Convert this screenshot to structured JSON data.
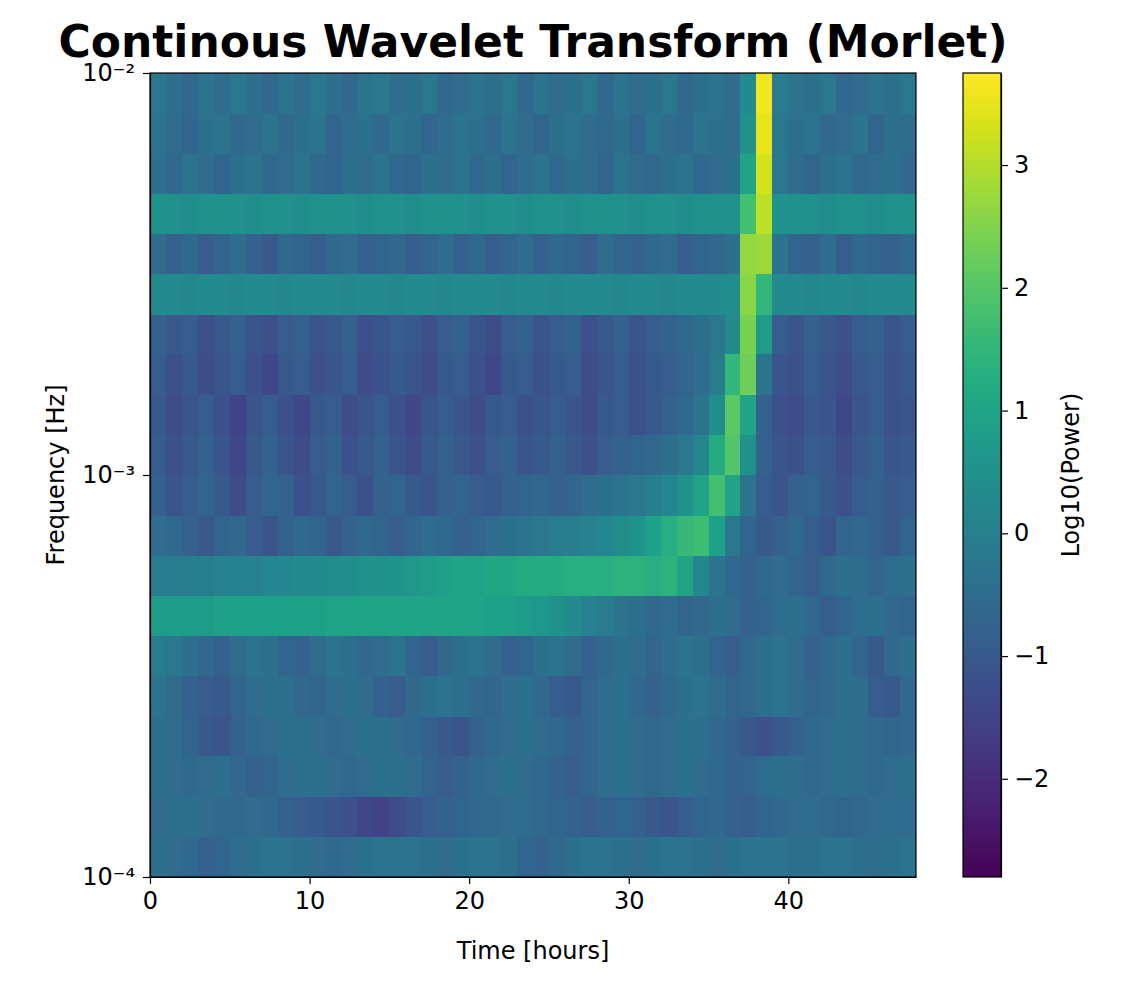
{
  "chart_data": {
    "type": "heatmap",
    "title": "Continous Wavelet Transform (Morlet)",
    "x_label": "Time [hours]",
    "y_label": "Frequency [Hz]",
    "log": "y",
    "color": "viridis",
    "xlim": [
      0,
      48
    ],
    "xticks": [
      0,
      10,
      20,
      30,
      40
    ],
    "ylim": [
      0.0001,
      0.01
    ],
    "yticks": [
      {
        "value": 0.0001,
        "label": "10⁻⁴"
      },
      {
        "value": 0.001,
        "label": "10⁻³"
      },
      {
        "value": 0.01,
        "label": "10⁻²"
      }
    ],
    "x_bins": [
      0,
      1,
      2,
      3,
      4,
      5,
      6,
      7,
      8,
      9,
      10,
      11,
      12,
      13,
      14,
      15,
      16,
      17,
      18,
      19,
      20,
      21,
      22,
      23,
      24,
      25,
      26,
      27,
      28,
      29,
      30,
      31,
      32,
      33,
      34,
      35,
      36,
      37,
      38,
      39,
      40,
      41,
      42,
      43,
      44,
      45,
      46,
      47,
      48
    ],
    "y_bins": [
      0.0001,
      0.000126,
      0.000158,
      0.0002,
      0.000251,
      0.000316,
      0.000398,
      0.000501,
      0.000631,
      0.000794,
      0.001,
      0.00126,
      0.00158,
      0.002,
      0.00251,
      0.00316,
      0.00398,
      0.00501,
      0.00631,
      0.00794,
      0.01
    ],
    "values": [
      [
        -0.4,
        -0.5,
        -0.6,
        -0.8,
        -0.7,
        -0.5,
        -0.4,
        -0.3,
        -0.3,
        -0.4,
        -0.5,
        -0.6,
        -0.5,
        -0.4,
        -0.3,
        -0.3,
        -0.3,
        -0.4,
        -0.5,
        -0.4,
        -0.3,
        -0.3,
        -0.4,
        -0.7,
        -0.8,
        -0.6,
        -0.4,
        -0.3,
        -0.3,
        -0.4,
        -0.5,
        -0.4,
        -0.3,
        -0.3,
        -0.4,
        -0.5,
        -0.4,
        -0.3,
        -0.3,
        -0.3,
        -0.4,
        -0.4,
        -0.3,
        -0.3,
        -0.4,
        -0.5,
        -0.4,
        -0.3
      ],
      [
        -0.5,
        -0.4,
        -0.4,
        -0.5,
        -0.6,
        -0.6,
        -0.5,
        -0.6,
        -0.8,
        -0.9,
        -1.0,
        -1.1,
        -1.2,
        -1.4,
        -1.5,
        -1.3,
        -1.1,
        -0.9,
        -0.8,
        -0.7,
        -0.6,
        -0.6,
        -0.5,
        -0.5,
        -0.6,
        -0.7,
        -0.8,
        -0.9,
        -0.8,
        -0.7,
        -0.8,
        -1.0,
        -1.1,
        -0.9,
        -0.7,
        -0.6,
        -0.8,
        -0.9,
        -0.7,
        -0.6,
        -0.5,
        -0.5,
        -0.6,
        -0.7,
        -0.6,
        -0.5,
        -0.5,
        -0.5
      ],
      [
        -0.4,
        -0.5,
        -0.6,
        -0.5,
        -0.4,
        -0.6,
        -0.8,
        -0.7,
        -0.5,
        -0.4,
        -0.4,
        -0.5,
        -0.6,
        -0.5,
        -0.4,
        -0.4,
        -0.5,
        -0.7,
        -0.9,
        -0.8,
        -0.6,
        -0.5,
        -0.4,
        -0.5,
        -0.6,
        -0.8,
        -0.9,
        -0.7,
        -0.5,
        -0.4,
        -0.5,
        -0.6,
        -0.5,
        -0.4,
        -0.5,
        -0.6,
        -0.8,
        -0.7,
        -0.5,
        -0.4,
        -0.5,
        -0.6,
        -0.5,
        -0.4,
        -0.5,
        -0.6,
        -0.5,
        -0.4
      ],
      [
        -0.4,
        -0.5,
        -0.7,
        -1.0,
        -1.1,
        -0.8,
        -0.6,
        -0.5,
        -0.4,
        -0.4,
        -0.5,
        -0.6,
        -0.5,
        -0.4,
        -0.4,
        -0.5,
        -0.6,
        -0.8,
        -1.0,
        -1.1,
        -0.8,
        -0.6,
        -0.5,
        -0.4,
        -0.5,
        -0.6,
        -0.8,
        -0.7,
        -0.5,
        -0.4,
        -0.5,
        -0.6,
        -0.5,
        -0.4,
        -0.4,
        -0.6,
        -0.8,
        -1.0,
        -1.2,
        -1.0,
        -0.8,
        -0.6,
        -0.5,
        -0.4,
        -0.5,
        -0.6,
        -0.7,
        -0.6
      ],
      [
        -0.3,
        -0.5,
        -0.8,
        -0.9,
        -1.0,
        -0.7,
        -0.5,
        -0.4,
        -0.4,
        -0.6,
        -0.7,
        -0.5,
        -0.4,
        -0.5,
        -0.8,
        -0.9,
        -0.6,
        -0.4,
        -0.3,
        -0.4,
        -0.6,
        -0.7,
        -0.5,
        -0.4,
        -0.6,
        -0.9,
        -1.0,
        -0.7,
        -0.5,
        -0.4,
        -0.6,
        -0.8,
        -0.6,
        -0.4,
        -0.3,
        -0.5,
        -0.7,
        -0.6,
        -0.4,
        -0.3,
        -0.5,
        -0.7,
        -0.6,
        -0.4,
        -0.5,
        -0.9,
        -1.0,
        -0.6
      ],
      [
        -0.1,
        -0.2,
        -0.4,
        -0.6,
        -0.8,
        -0.5,
        -0.3,
        -0.4,
        -0.7,
        -0.8,
        -0.5,
        -0.3,
        -0.4,
        -0.6,
        -0.5,
        -0.3,
        -0.7,
        -0.9,
        -0.6,
        -0.4,
        -0.3,
        -0.5,
        -0.8,
        -0.7,
        -0.4,
        -0.3,
        -0.5,
        -0.8,
        -0.6,
        -0.4,
        -0.5,
        -0.7,
        -0.5,
        -0.3,
        -0.4,
        -0.7,
        -0.9,
        -0.6,
        -0.4,
        -0.3,
        -0.5,
        -0.8,
        -0.6,
        -0.4,
        -0.7,
        -1.0,
        -0.6,
        -0.4
      ],
      [
        0.8,
        0.8,
        0.8,
        0.8,
        0.9,
        0.9,
        0.9,
        0.9,
        0.9,
        0.9,
        0.9,
        1.0,
        1.0,
        1.0,
        1.0,
        1.0,
        1.0,
        1.0,
        1.0,
        1.0,
        1.0,
        0.9,
        0.9,
        0.8,
        0.7,
        0.5,
        0.3,
        0.1,
        -0.1,
        -0.3,
        -0.4,
        -0.6,
        -0.5,
        -0.7,
        -0.6,
        -0.4,
        -0.5,
        -0.8,
        -0.7,
        -0.5,
        -0.4,
        -0.6,
        -0.9,
        -0.7,
        -0.5,
        -0.4,
        -0.6,
        -0.7
      ],
      [
        -0.1,
        -0.1,
        0.0,
        0.0,
        0.1,
        0.1,
        0.1,
        0.2,
        0.2,
        0.3,
        0.3,
        0.4,
        0.4,
        0.5,
        0.5,
        0.6,
        0.7,
        0.8,
        0.9,
        1.0,
        1.0,
        1.1,
        1.1,
        1.2,
        1.2,
        1.2,
        1.3,
        1.3,
        1.3,
        1.4,
        1.4,
        1.3,
        1.4,
        1.0,
        0.2,
        -0.3,
        -0.6,
        -0.8,
        -0.6,
        -0.5,
        -0.7,
        -0.9,
        -0.6,
        -0.4,
        -0.5,
        -0.7,
        -0.5,
        -0.4
      ],
      [
        -0.5,
        -0.6,
        -0.8,
        -1.0,
        -0.7,
        -0.6,
        -0.9,
        -1.1,
        -0.8,
        -0.6,
        -0.7,
        -1.0,
        -0.8,
        -0.6,
        -0.7,
        -0.9,
        -0.7,
        -0.5,
        -0.6,
        -0.8,
        -0.7,
        -0.5,
        -0.4,
        -0.3,
        -0.2,
        -0.1,
        0.0,
        0.1,
        0.2,
        0.4,
        0.6,
        0.9,
        1.3,
        1.6,
        1.7,
        0.9,
        -0.2,
        -0.7,
        -1.0,
        -0.8,
        -0.6,
        -0.9,
        -1.1,
        -0.7,
        -0.6,
        -0.8,
        -1.0,
        -0.7
      ],
      [
        -0.8,
        -1.1,
        -0.9,
        -0.7,
        -1.0,
        -1.3,
        -0.9,
        -0.7,
        -0.8,
        -1.2,
        -1.0,
        -0.7,
        -0.9,
        -1.2,
        -0.8,
        -0.7,
        -1.0,
        -1.1,
        -0.8,
        -0.7,
        -0.9,
        -1.0,
        -0.8,
        -0.7,
        -0.6,
        -0.8,
        -0.7,
        -0.5,
        -0.4,
        -0.3,
        -0.2,
        0.0,
        0.2,
        0.5,
        1.0,
        1.8,
        1.0,
        -0.3,
        -0.9,
        -1.1,
        -0.8,
        -0.7,
        -1.0,
        -1.2,
        -0.9,
        -0.8,
        -1.0,
        -0.9
      ],
      [
        -0.9,
        -1.2,
        -1.0,
        -0.8,
        -1.1,
        -1.4,
        -1.0,
        -0.8,
        -1.1,
        -1.3,
        -0.9,
        -0.8,
        -1.2,
        -1.0,
        -0.8,
        -1.1,
        -1.3,
        -1.0,
        -0.8,
        -1.0,
        -1.2,
        -0.9,
        -0.8,
        -1.1,
        -1.0,
        -0.8,
        -1.0,
        -1.2,
        -0.9,
        -0.8,
        -0.7,
        -0.6,
        -0.4,
        -0.2,
        0.2,
        1.2,
        2.0,
        0.5,
        -0.8,
        -1.1,
        -1.2,
        -0.9,
        -1.0,
        -1.3,
        -1.0,
        -0.8,
        -1.1,
        -1.0
      ],
      [
        -1.0,
        -1.3,
        -1.1,
        -0.9,
        -1.2,
        -1.5,
        -1.1,
        -0.9,
        -1.2,
        -1.4,
        -1.0,
        -0.9,
        -1.3,
        -1.1,
        -0.9,
        -1.2,
        -1.4,
        -1.1,
        -0.9,
        -1.1,
        -1.3,
        -1.0,
        -0.9,
        -1.2,
        -1.1,
        -0.9,
        -1.1,
        -1.3,
        -1.0,
        -0.9,
        -1.2,
        -1.0,
        -0.8,
        -0.6,
        -0.3,
        0.4,
        2.1,
        1.0,
        -0.8,
        -1.2,
        -1.3,
        -1.0,
        -1.1,
        -1.4,
        -1.1,
        -0.9,
        -1.2,
        -1.1
      ],
      [
        -0.9,
        -1.2,
        -1.0,
        -1.3,
        -1.1,
        -0.9,
        -1.2,
        -1.4,
        -1.0,
        -0.9,
        -1.2,
        -1.1,
        -0.9,
        -1.3,
        -1.2,
        -1.0,
        -1.1,
        -1.3,
        -1.0,
        -0.9,
        -1.2,
        -1.4,
        -1.0,
        -0.9,
        -1.2,
        -1.0,
        -0.9,
        -1.3,
        -1.1,
        -0.9,
        -1.2,
        -1.0,
        -0.9,
        -0.7,
        -0.5,
        -0.1,
        1.5,
        2.3,
        -0.3,
        -1.1,
        -1.2,
        -0.9,
        -1.1,
        -1.3,
        -1.0,
        -0.9,
        -1.2,
        -1.0
      ],
      [
        -0.8,
        -1.0,
        -0.9,
        -1.2,
        -1.0,
        -0.8,
        -1.1,
        -1.2,
        -0.9,
        -0.8,
        -1.1,
        -1.0,
        -0.8,
        -1.2,
        -1.1,
        -0.9,
        -1.0,
        -1.2,
        -0.9,
        -0.8,
        -1.1,
        -1.3,
        -0.9,
        -0.8,
        -1.1,
        -0.9,
        -0.8,
        -1.2,
        -1.0,
        -0.8,
        -1.1,
        -0.9,
        -0.8,
        -0.6,
        -0.4,
        -0.2,
        0.3,
        2.4,
        0.8,
        -0.9,
        -1.1,
        -0.8,
        -1.0,
        -1.2,
        -0.9,
        -0.8,
        -1.1,
        -0.9
      ],
      [
        0.3,
        0.3,
        0.2,
        0.3,
        0.3,
        0.2,
        0.3,
        0.3,
        0.2,
        0.3,
        0.3,
        0.3,
        0.2,
        0.3,
        0.3,
        0.2,
        0.3,
        0.3,
        0.2,
        0.3,
        0.3,
        0.3,
        0.2,
        0.3,
        0.3,
        0.2,
        0.3,
        0.3,
        0.3,
        0.2,
        0.3,
        0.3,
        0.2,
        0.3,
        0.3,
        0.3,
        0.4,
        2.6,
        1.5,
        0.3,
        0.3,
        0.2,
        0.3,
        0.3,
        0.2,
        0.3,
        0.3,
        0.3
      ],
      [
        -0.5,
        -0.8,
        -0.6,
        -0.9,
        -0.7,
        -0.5,
        -0.8,
        -1.0,
        -0.6,
        -0.7,
        -0.9,
        -0.6,
        -0.5,
        -0.8,
        -0.7,
        -0.6,
        -0.9,
        -0.7,
        -0.5,
        -0.8,
        -0.6,
        -0.9,
        -0.7,
        -0.5,
        -0.8,
        -0.6,
        -0.7,
        -0.9,
        -0.5,
        -0.7,
        -0.8,
        -0.6,
        -0.5,
        -0.9,
        -0.7,
        -0.6,
        -0.4,
        2.7,
        2.8,
        -0.3,
        -0.7,
        -0.8,
        -0.5,
        -0.9,
        -0.6,
        -0.7,
        -0.8,
        -0.6
      ],
      [
        0.5,
        0.5,
        0.4,
        0.5,
        0.5,
        0.5,
        0.4,
        0.5,
        0.5,
        0.4,
        0.5,
        0.5,
        0.5,
        0.4,
        0.5,
        0.5,
        0.4,
        0.5,
        0.5,
        0.5,
        0.4,
        0.5,
        0.5,
        0.4,
        0.5,
        0.5,
        0.4,
        0.5,
        0.5,
        0.5,
        0.4,
        0.5,
        0.5,
        0.4,
        0.5,
        0.5,
        0.5,
        1.8,
        3.1,
        0.6,
        0.5,
        0.5,
        0.4,
        0.5,
        0.5,
        0.4,
        0.5,
        0.5
      ],
      [
        -0.4,
        -0.6,
        -0.3,
        -0.5,
        -0.7,
        -0.4,
        -0.3,
        -0.6,
        -0.5,
        -0.3,
        -0.6,
        -0.7,
        -0.4,
        -0.5,
        -0.3,
        -0.6,
        -0.7,
        -0.4,
        -0.5,
        -0.3,
        -0.6,
        -0.4,
        -0.7,
        -0.5,
        -0.3,
        -0.6,
        -0.4,
        -0.5,
        -0.7,
        -0.3,
        -0.5,
        -0.6,
        -0.4,
        -0.3,
        -0.6,
        -0.5,
        -0.4,
        1.0,
        3.3,
        -0.2,
        -0.5,
        -0.7,
        -0.4,
        -0.3,
        -0.6,
        -0.5,
        -0.4,
        -0.6
      ],
      [
        -0.3,
        -0.5,
        -0.7,
        -0.4,
        -0.3,
        -0.6,
        -0.5,
        -0.3,
        -0.6,
        -0.4,
        -0.3,
        -0.7,
        -0.5,
        -0.4,
        -0.6,
        -0.3,
        -0.4,
        -0.7,
        -0.5,
        -0.3,
        -0.4,
        -0.6,
        -0.3,
        -0.5,
        -0.7,
        -0.4,
        -0.3,
        -0.5,
        -0.6,
        -0.4,
        -0.7,
        -0.3,
        -0.5,
        -0.6,
        -0.3,
        -0.4,
        -0.5,
        0.5,
        3.5,
        -0.2,
        -0.4,
        -0.3,
        -0.6,
        -0.5,
        -0.3,
        -0.7,
        -0.4,
        -0.5
      ],
      [
        -0.2,
        -0.4,
        -0.6,
        -0.3,
        -0.5,
        -0.2,
        -0.4,
        -0.6,
        -0.3,
        -0.5,
        -0.2,
        -0.4,
        -0.6,
        -0.3,
        -0.2,
        -0.5,
        -0.4,
        -0.2,
        -0.6,
        -0.5,
        -0.3,
        -0.4,
        -0.2,
        -0.6,
        -0.3,
        -0.5,
        -0.4,
        -0.2,
        -0.6,
        -0.3,
        -0.5,
        -0.4,
        -0.2,
        -0.6,
        -0.4,
        -0.3,
        -0.5,
        0.3,
        3.6,
        -0.1,
        -0.3,
        -0.4,
        -0.2,
        -0.6,
        -0.5,
        -0.3,
        -0.4,
        -0.2
      ]
    ],
    "colorbar": {
      "label": "Log10(Power)",
      "range": [
        -2.8,
        3.75
      ],
      "ticks": [
        {
          "value": -2,
          "label": "−2"
        },
        {
          "value": -1,
          "label": "−1"
        },
        0,
        1,
        2,
        3
      ]
    }
  }
}
